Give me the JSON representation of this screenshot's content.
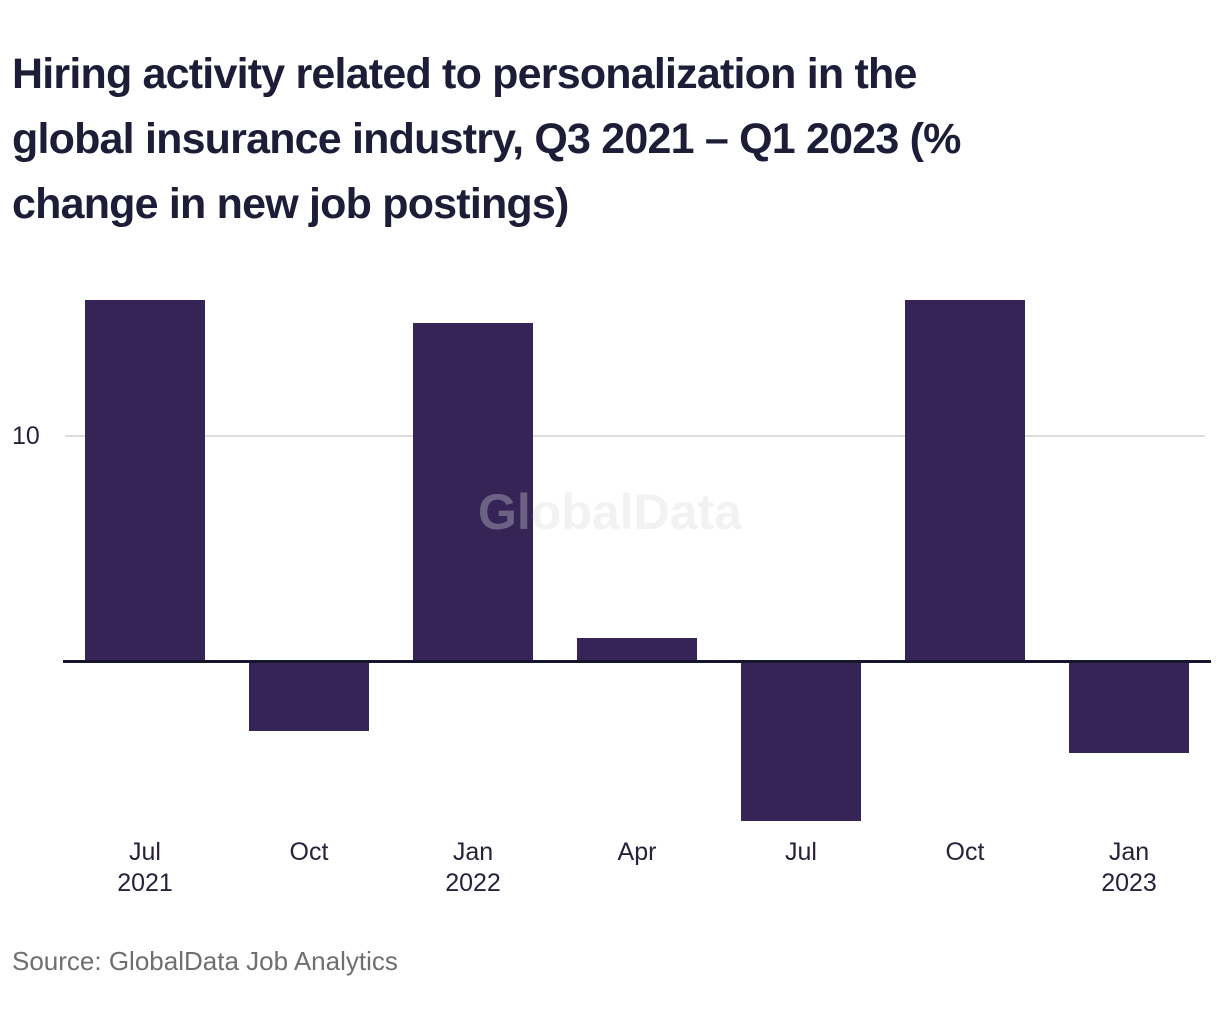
{
  "page": {
    "background": "#ffffff"
  },
  "header": {
    "title": "Hiring activity related to personalization in the global insurance industry, Q3 2021 – Q1 2023 (% change in new job postings)",
    "title_lines": [
      "Hiring activity related to personalization in the",
      "global insurance industry, Q3 2021 – Q1 2023 (%",
      "change in new job postings)"
    ]
  },
  "chart_data": {
    "type": "bar",
    "title": "Hiring activity related to personalization in the global insurance industry, Q3 2021 – Q1 2023 (% change in new job postings)",
    "categories": [
      "Jul 2021",
      "Oct 2021",
      "Jan 2022",
      "Apr 2022",
      "Jul 2022",
      "Oct 2022",
      "Jan 2023"
    ],
    "category_label_lines": [
      [
        "Jul",
        "2021"
      ],
      [
        "Oct"
      ],
      [
        "Jan",
        "2022"
      ],
      [
        "Apr"
      ],
      [
        "Jul"
      ],
      [
        "Oct"
      ],
      [
        "Jan",
        "2023"
      ]
    ],
    "values": [
      16,
      -3,
      15,
      1,
      -7,
      16,
      -4
    ],
    "unit": "% change in new job postings",
    "xlabel": "",
    "ylabel": "",
    "yticks": [
      10
    ],
    "ytick_label": "10",
    "ylim": [
      -8,
      17
    ],
    "baseline": 0,
    "grid": "single horizontal gridline at y=10",
    "legend": "none",
    "watermark": "GlobalData",
    "colors": {
      "bar": "#362457",
      "axis_line": "#15152e",
      "gridline": "#dcdcdc",
      "title_text": "#1d1d38",
      "axis_text": "#23233c",
      "source_text": "#6f6f6f",
      "watermark_text": "#dbdbdb"
    }
  },
  "footer": {
    "source": "Source: GlobalData Job Analytics"
  }
}
